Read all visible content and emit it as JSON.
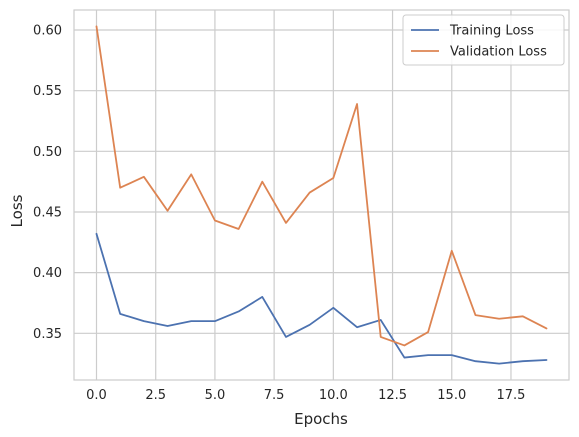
{
  "chart_data": {
    "type": "line",
    "title": "",
    "xlabel": "Epochs",
    "ylabel": "Loss",
    "xlim": [
      -0.95,
      19.95
    ],
    "ylim": [
      0.3115,
      0.6165
    ],
    "x": [
      0,
      1,
      2,
      3,
      4,
      5,
      6,
      7,
      8,
      9,
      10,
      11,
      12,
      13,
      14,
      15,
      16,
      17,
      18,
      19
    ],
    "xticks": [
      "0.0",
      "2.5",
      "5.0",
      "7.5",
      "10.0",
      "12.5",
      "15.0",
      "17.5"
    ],
    "xtick_values": [
      0,
      2.5,
      5,
      7.5,
      10,
      12.5,
      15,
      17.5
    ],
    "yticks": [
      "0.35",
      "0.40",
      "0.45",
      "0.50",
      "0.55",
      "0.60"
    ],
    "ytick_values": [
      0.35,
      0.4,
      0.45,
      0.5,
      0.55,
      0.6
    ],
    "grid": true,
    "legend_position": "top-right",
    "series": [
      {
        "name": "Training Loss",
        "color": "#4c72b0",
        "values": [
          0.432,
          0.366,
          0.36,
          0.356,
          0.36,
          0.36,
          0.368,
          0.38,
          0.347,
          0.357,
          0.371,
          0.355,
          0.361,
          0.33,
          0.332,
          0.332,
          0.327,
          0.325,
          0.327,
          0.328
        ]
      },
      {
        "name": "Validation Loss",
        "color": "#dd8452",
        "values": [
          0.603,
          0.47,
          0.479,
          0.451,
          0.481,
          0.443,
          0.436,
          0.475,
          0.441,
          0.466,
          0.478,
          0.539,
          0.347,
          0.34,
          0.351,
          0.418,
          0.365,
          0.362,
          0.364,
          0.354
        ]
      }
    ]
  }
}
